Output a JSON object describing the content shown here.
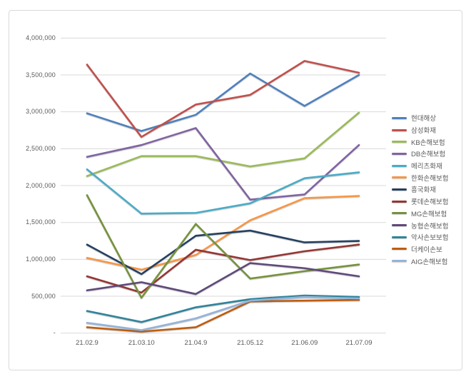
{
  "chart_data": {
    "type": "line",
    "title": "",
    "x": [
      "21.02.9",
      "21.03.10",
      "21.04.9",
      "21.05.12",
      "21.06.09",
      "21.07.09"
    ],
    "series": [
      {
        "name": "현대해상",
        "color": "#4F81BD",
        "values": [
          2980000,
          2740000,
          2960000,
          3520000,
          3080000,
          3500000
        ]
      },
      {
        "name": "삼성화재",
        "color": "#C0504D",
        "values": [
          3640000,
          2660000,
          3100000,
          3230000,
          3690000,
          3530000
        ]
      },
      {
        "name": "KB손해보험",
        "color": "#9BBB59",
        "values": [
          2130000,
          2400000,
          2400000,
          2260000,
          2370000,
          2990000
        ]
      },
      {
        "name": "DB손해보험",
        "color": "#8064A2",
        "values": [
          2390000,
          2550000,
          2780000,
          1810000,
          1880000,
          2550000
        ]
      },
      {
        "name": "메리츠화재",
        "color": "#4BACC6",
        "values": [
          2220000,
          1620000,
          1630000,
          1760000,
          2100000,
          2180000
        ]
      },
      {
        "name": "한화손해보험",
        "color": "#F79646",
        "values": [
          1020000,
          860000,
          1060000,
          1530000,
          1830000,
          1860000
        ]
      },
      {
        "name": "흥국화재",
        "color": "#254061",
        "values": [
          1200000,
          800000,
          1320000,
          1390000,
          1230000,
          1250000
        ]
      },
      {
        "name": "롯데손해보험",
        "color": "#943634",
        "values": [
          770000,
          550000,
          1130000,
          990000,
          1110000,
          1200000
        ]
      },
      {
        "name": "MG손해보험",
        "color": "#76923C",
        "values": [
          1870000,
          480000,
          1480000,
          740000,
          840000,
          930000
        ]
      },
      {
        "name": "농협손해보험",
        "color": "#5F497A",
        "values": [
          580000,
          690000,
          530000,
          950000,
          880000,
          770000
        ]
      },
      {
        "name": "악사손보보험",
        "color": "#31849B",
        "values": [
          300000,
          150000,
          350000,
          460000,
          510000,
          490000
        ]
      },
      {
        "name": "더케이손보",
        "color": "#BE5D10",
        "values": [
          80000,
          20000,
          80000,
          430000,
          440000,
          450000
        ]
      },
      {
        "name": "AIG손해보험",
        "color": "#95B3D7",
        "values": [
          140000,
          40000,
          200000,
          440000,
          490000,
          470000
        ]
      }
    ],
    "ylim": [
      0,
      4000000
    ],
    "ytick_step": 500000,
    "ytick_labels_top_to_bottom": [
      "4,000,000",
      "3,500,000",
      "3,000,000",
      "2,500,000",
      "2,000,000",
      "1,500,000",
      "1,000,000",
      "500,000",
      "-"
    ],
    "xlabel": "",
    "ylabel": "",
    "grid": "horizontal",
    "legend_position": "right",
    "gridline_color": "#DADADA"
  }
}
